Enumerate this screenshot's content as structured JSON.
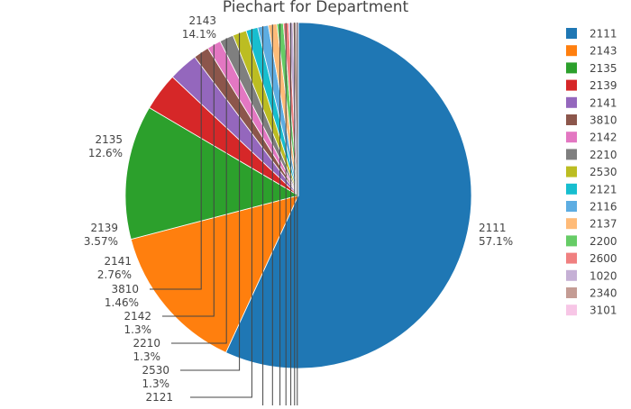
{
  "chart_data": {
    "type": "pie",
    "title": "Piechart for Department",
    "slices": [
      {
        "label": "2111",
        "percent": 57.1,
        "percent_text": "57.1%",
        "color": "#1f77b4"
      },
      {
        "label": "2143",
        "percent": 14.1,
        "percent_text": "14.1%",
        "color": "#ff7f0e"
      },
      {
        "label": "2135",
        "percent": 12.6,
        "percent_text": "12.6%",
        "color": "#2ca02c"
      },
      {
        "label": "2139",
        "percent": 3.57,
        "percent_text": "3.57%",
        "color": "#d62728"
      },
      {
        "label": "2141",
        "percent": 2.76,
        "percent_text": "2.76%",
        "color": "#9467bd"
      },
      {
        "label": "3810",
        "percent": 1.46,
        "percent_text": "1.46%",
        "color": "#8c564b"
      },
      {
        "label": "2142",
        "percent": 1.3,
        "percent_text": "1.3%",
        "color": "#e377c2"
      },
      {
        "label": "2210",
        "percent": 1.3,
        "percent_text": "1.3%",
        "color": "#7f7f7f"
      },
      {
        "label": "2530",
        "percent": 1.3,
        "percent_text": "1.3%",
        "color": "#bcbd22"
      },
      {
        "label": "2121",
        "percent": 1.1,
        "percent_text": "",
        "color": "#17becf"
      },
      {
        "label": "2116",
        "percent": 1.0,
        "percent_text": "",
        "color": "#5dade2"
      },
      {
        "label": "2137",
        "percent": 0.8,
        "percent_text": "",
        "color": "#ffbb78"
      },
      {
        "label": "2200",
        "percent": 0.6,
        "percent_text": "",
        "color": "#66cc66"
      },
      {
        "label": "2600",
        "percent": 0.5,
        "percent_text": "",
        "color": "#f08080"
      },
      {
        "label": "1020",
        "percent": 0.4,
        "percent_text": "",
        "color": "#c5b0d5"
      },
      {
        "label": "2340",
        "percent": 0.3,
        "percent_text": "",
        "color": "#c49c94"
      },
      {
        "label": "3101",
        "percent": 0.2,
        "percent_text": "",
        "color": "#f7c6e6"
      }
    ],
    "legend_position": "right",
    "sort": "descending",
    "direction": "clockwise",
    "start_angle": "top"
  }
}
